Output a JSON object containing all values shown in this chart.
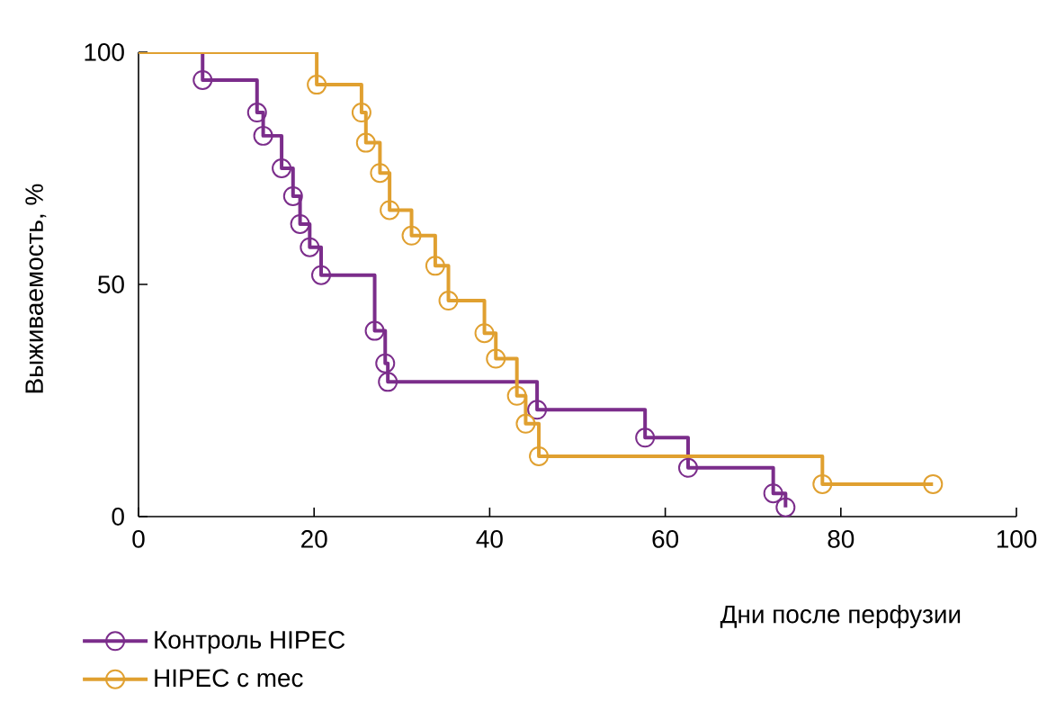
{
  "chart_data": {
    "type": "step",
    "xlabel": "Дни после перфузии",
    "ylabel": "Выживаемость, %",
    "xlim": [
      0,
      100
    ],
    "ylim": [
      0,
      100
    ],
    "xticks": [
      0,
      20,
      40,
      60,
      80,
      100
    ],
    "yticks": [
      0,
      50,
      100
    ],
    "legend": "bottom left",
    "marker": "circle",
    "line_style": "solid",
    "grid": false,
    "series": [
      {
        "name": "Контроль HIPEC",
        "color": "#7b2d8b",
        "x": [
          0,
          7.3,
          13.5,
          14.2,
          16.3,
          17.6,
          18.4,
          19.5,
          20.8,
          26.9,
          28.1,
          28.4,
          45.4,
          57.7,
          62.6,
          72.3,
          73.7
        ],
        "values": [
          100,
          94,
          87,
          82,
          75,
          69,
          63,
          58,
          52,
          40,
          33,
          29,
          23,
          17,
          10.5,
          5,
          2
        ]
      },
      {
        "name": "HIPEC с mec",
        "color": "#e0a030",
        "x": [
          0,
          20.3,
          25.4,
          25.9,
          27.5,
          28.6,
          31.1,
          33.8,
          35.3,
          39.4,
          40.7,
          43.1,
          44.1,
          45.6,
          77.9,
          90.5
        ],
        "values": [
          100,
          93,
          87,
          80.5,
          74,
          66,
          60.5,
          54,
          46.5,
          39.5,
          34,
          26,
          20,
          13,
          7,
          7
        ]
      }
    ]
  }
}
